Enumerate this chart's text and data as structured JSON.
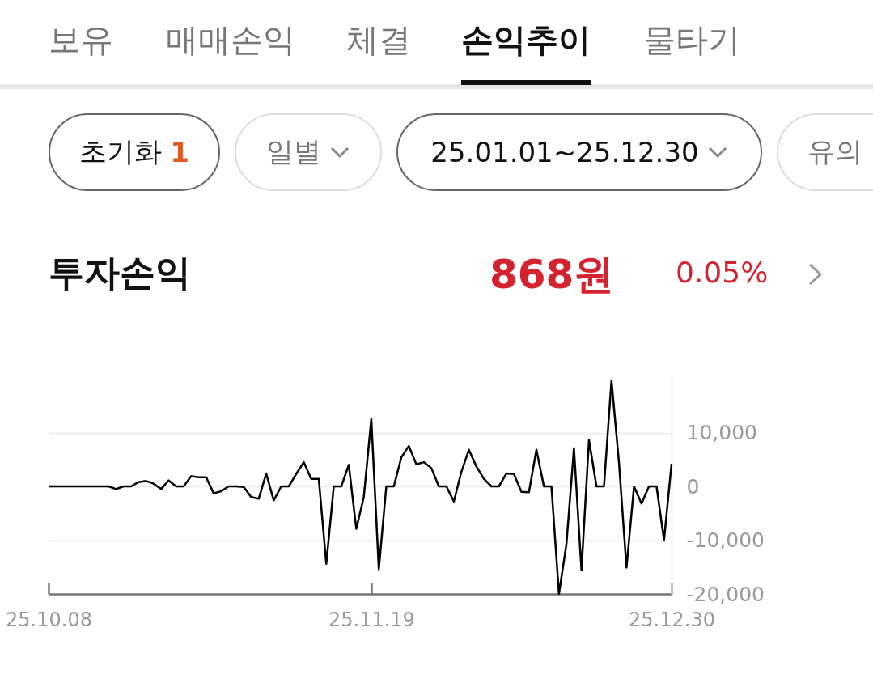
{
  "chart_data": {
    "type": "line",
    "title": "투자손익",
    "annotations": [
      "보유",
      "매매손익",
      "체결",
      "손익추이",
      "물타기",
      "초기화",
      "1",
      "일별",
      "25.01.01~25.12.30",
      "유의",
      "868원",
      "0.05%"
    ],
    "categories": [
      "25.10.08",
      null,
      null,
      null,
      null,
      null,
      null,
      null,
      null,
      null,
      null,
      null,
      null,
      null,
      null,
      null,
      null,
      null,
      null,
      null,
      null,
      null,
      null,
      null,
      null,
      null,
      null,
      null,
      null,
      null,
      null,
      null,
      null,
      null,
      null,
      null,
      null,
      null,
      null,
      null,
      null,
      null,
      null,
      "25.11.19",
      null,
      null,
      null,
      null,
      null,
      null,
      null,
      null,
      null,
      null,
      null,
      null,
      null,
      null,
      null,
      null,
      null,
      null,
      null,
      null,
      null,
      null,
      null,
      null,
      null,
      null,
      null,
      null,
      null,
      null,
      null,
      null,
      null,
      null,
      null,
      null,
      null,
      null,
      null,
      "25.12.30"
    ],
    "series": [
      {
        "color": "#000000",
        "values": [
          0,
          0,
          0,
          0,
          0,
          0,
          0,
          0,
          0,
          -500,
          0,
          0,
          800,
          1000,
          500,
          -500,
          1100,
          0,
          0,
          1900,
          1700,
          1700,
          -1300,
          -900,
          0,
          0,
          -100,
          -2000,
          -2300,
          2400,
          -2600,
          0,
          0,
          2300,
          4500,
          1400,
          1400,
          -14400,
          0,
          0,
          4000,
          -7900,
          -2000,
          12500,
          -15400,
          0,
          0,
          5400,
          7500,
          4100,
          4500,
          3400,
          0,
          0,
          -2800,
          2700,
          6800,
          3700,
          1400,
          0,
          0,
          2400,
          2300,
          -1000,
          -1100,
          6800,
          0,
          0,
          -20000,
          -10700,
          7100,
          -15600,
          8600,
          0,
          0,
          19700,
          4400,
          -15100,
          0,
          -3200,
          0,
          0,
          -10000,
          4200
        ]
      }
    ],
    "ylim": [
      -20000,
      19700
    ],
    "yticks": [
      {
        "value": 10000,
        "label": "10,000"
      },
      0,
      {
        "value": -10000,
        "label": "-10,000"
      },
      {
        "value": -20000,
        "label": "-20,000"
      }
    ],
    "grid": "y",
    "marker": "none",
    "line_style": "solid"
  }
}
